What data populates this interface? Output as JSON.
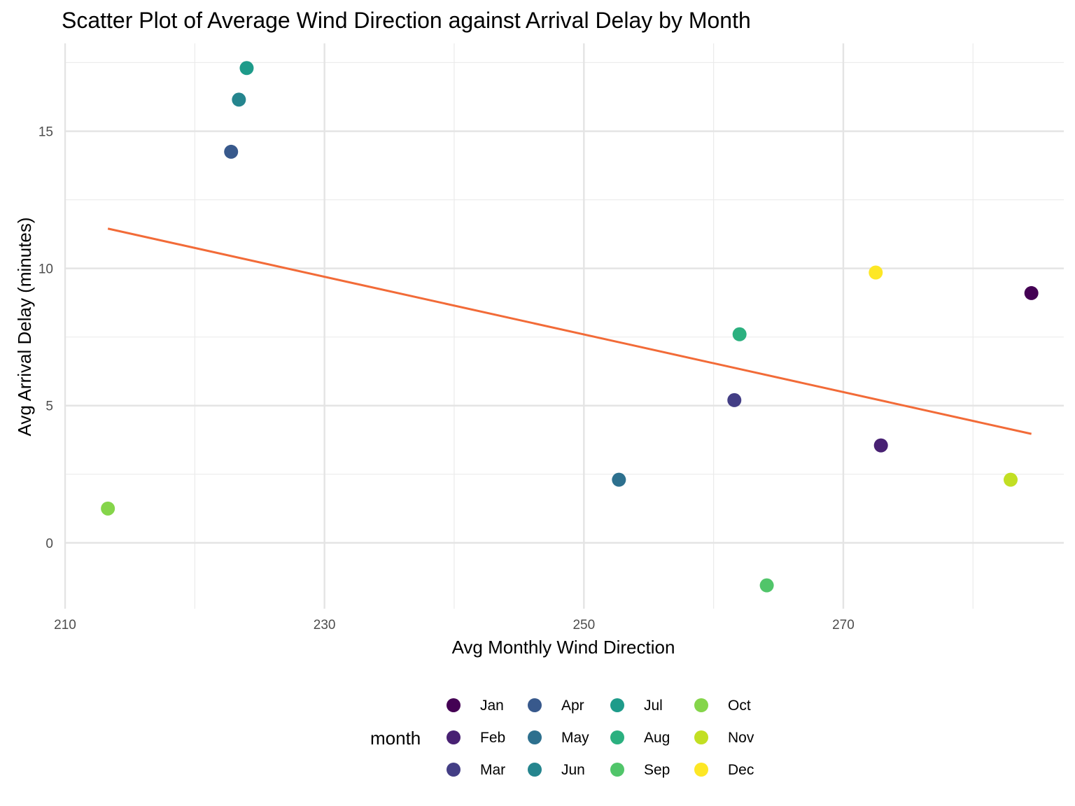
{
  "chart_data": {
    "type": "scatter",
    "title": "Scatter Plot of Average Wind Direction against Arrival Delay by Month",
    "xlabel": "Avg Monthly Wind Direction",
    "ylabel": "Avg Arrival Delay (minutes)",
    "xlim": [
      210,
      287
    ],
    "ylim": [
      -2.4,
      18.2
    ],
    "x_ticks": [
      210,
      230,
      250,
      270
    ],
    "x_minor": [
      220,
      240,
      260,
      280
    ],
    "y_ticks": [
      0,
      5,
      10,
      15
    ],
    "y_minor": [
      2.5,
      7.5,
      12.5,
      17.5
    ],
    "grid": true,
    "legend": {
      "title": "month",
      "position": "bottom"
    },
    "series": [
      {
        "name": "Jan",
        "color": "#440154",
        "x": 284.5,
        "y": 9.1
      },
      {
        "name": "Feb",
        "color": "#482173",
        "x": 272.9,
        "y": 3.55
      },
      {
        "name": "Mar",
        "color": "#433E85",
        "x": 261.6,
        "y": 5.2
      },
      {
        "name": "Apr",
        "color": "#38598C",
        "x": 222.8,
        "y": 14.25
      },
      {
        "name": "May",
        "color": "#2D708E",
        "x": 252.7,
        "y": 2.3
      },
      {
        "name": "Jun",
        "color": "#25858E",
        "x": 223.4,
        "y": 16.15
      },
      {
        "name": "Jul",
        "color": "#1E9B8A",
        "x": 224.0,
        "y": 17.3
      },
      {
        "name": "Aug",
        "color": "#2BB07F",
        "x": 262.0,
        "y": 7.6
      },
      {
        "name": "Sep",
        "color": "#51C56A",
        "x": 264.1,
        "y": -1.55
      },
      {
        "name": "Oct",
        "color": "#85D54A",
        "x": 213.3,
        "y": 1.25
      },
      {
        "name": "Nov",
        "color": "#C2DF23",
        "x": 282.9,
        "y": 2.3
      },
      {
        "name": "Dec",
        "color": "#FDE725",
        "x": 272.5,
        "y": 9.85
      }
    ],
    "trendline": {
      "color": "#F26B38",
      "x": [
        213.3,
        284.5
      ],
      "y": [
        11.45,
        3.97
      ]
    }
  }
}
